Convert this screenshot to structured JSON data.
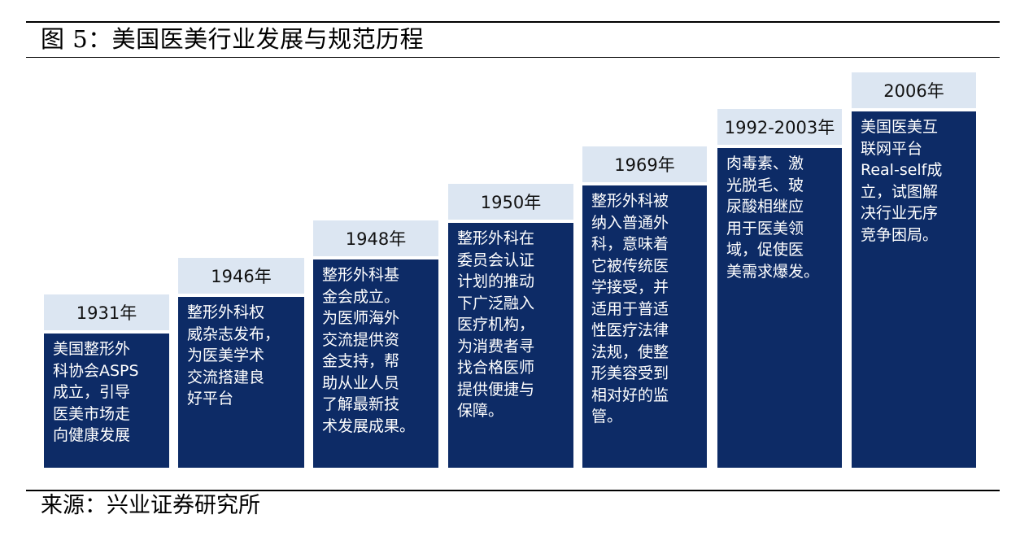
{
  "figure": {
    "title": "图 5：美国医美行业发展与规范历程",
    "source": "来源：兴业证券研究所"
  },
  "timeline": [
    {
      "year": "1931年",
      "lines": [
        "美国整形外",
        "科协会ASPS",
        "成立，引导",
        "医美市场走",
        "向健康发展"
      ]
    },
    {
      "year": "1946年",
      "lines": [
        "整形外科权",
        "威杂志发布，",
        "为医美学术",
        "交流搭建良",
        "好平台"
      ]
    },
    {
      "year": "1948年",
      "lines": [
        "整形外科基",
        "金会成立。",
        "为医师海外",
        "交流提供资",
        "金支持，帮",
        "助从业人员",
        "了解最新技",
        "术发展成果。"
      ]
    },
    {
      "year": "1950年",
      "lines": [
        "整形外科在",
        "委员会认证",
        "计划的推动",
        "下广泛融入",
        "医疗机构，",
        "为消费者寻",
        "找合格医师",
        "提供便捷与",
        "保障。"
      ]
    },
    {
      "year": "1969年",
      "lines": [
        "整形外科被",
        "纳入普通外",
        "科，意味着",
        "它被传统医",
        "学接受，并",
        "适用于普适",
        "性医疗法律",
        "法规，使整",
        "形美容受到",
        "相对好的监",
        "管。"
      ]
    },
    {
      "year": "1992-2003年",
      "lines": [
        "肉毒素、激",
        "光脱毛、玻",
        "尿酸相继应",
        "用于医美领",
        "域，促使医",
        "美需求爆发。"
      ]
    },
    {
      "year": "2006年",
      "lines": [
        "美国医美互",
        "联网平台",
        "Real-self成",
        "立，试图解",
        "决行业无序",
        "竞争困局。"
      ]
    }
  ]
}
